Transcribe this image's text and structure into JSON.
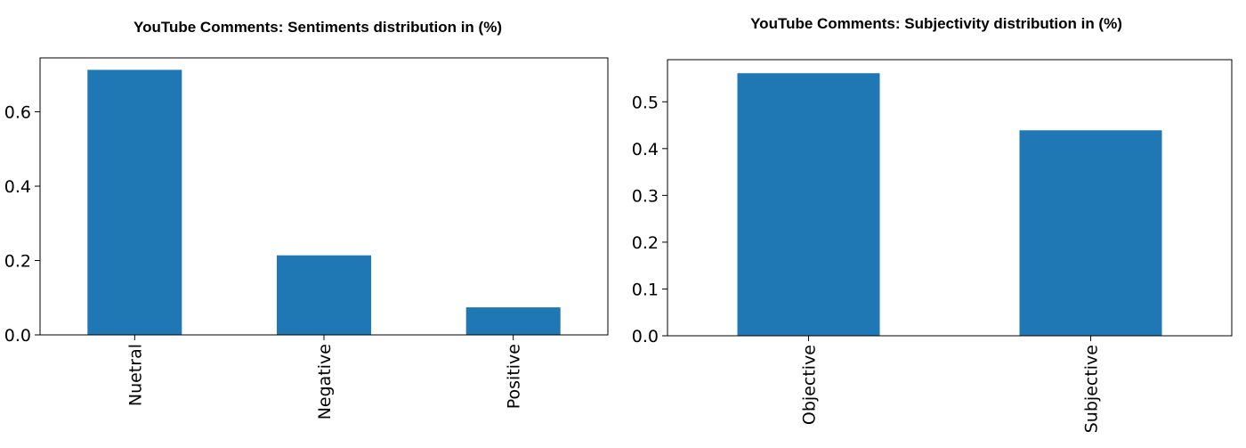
{
  "chart_data": [
    {
      "type": "bar",
      "title": "YouTube Comments: Sentiments distribution in (%)",
      "xlabel": "",
      "ylabel": "",
      "categories": [
        "Nuetral",
        "Negative",
        "Positive"
      ],
      "values": [
        0.713,
        0.214,
        0.074
      ],
      "ylim": [
        0,
        0.745
      ],
      "yticks": [
        0.0,
        0.2,
        0.4,
        0.6
      ],
      "ytick_labels": [
        "0.0",
        "0.2",
        "0.4",
        "0.6"
      ],
      "bar_color": "#1f77b4",
      "grid": false,
      "legend": false
    },
    {
      "type": "bar",
      "title": "YouTube Comments: Subjectivity distribution in (%)",
      "xlabel": "",
      "ylabel": "",
      "categories": [
        "Objective",
        "Subjective"
      ],
      "values": [
        0.561,
        0.439
      ],
      "ylim": [
        0,
        0.59
      ],
      "yticks": [
        0.0,
        0.1,
        0.2,
        0.3,
        0.4,
        0.5
      ],
      "ytick_labels": [
        "0.0",
        "0.1",
        "0.2",
        "0.3",
        "0.4",
        "0.5"
      ],
      "bar_color": "#1f77b4",
      "grid": false,
      "legend": false
    }
  ]
}
